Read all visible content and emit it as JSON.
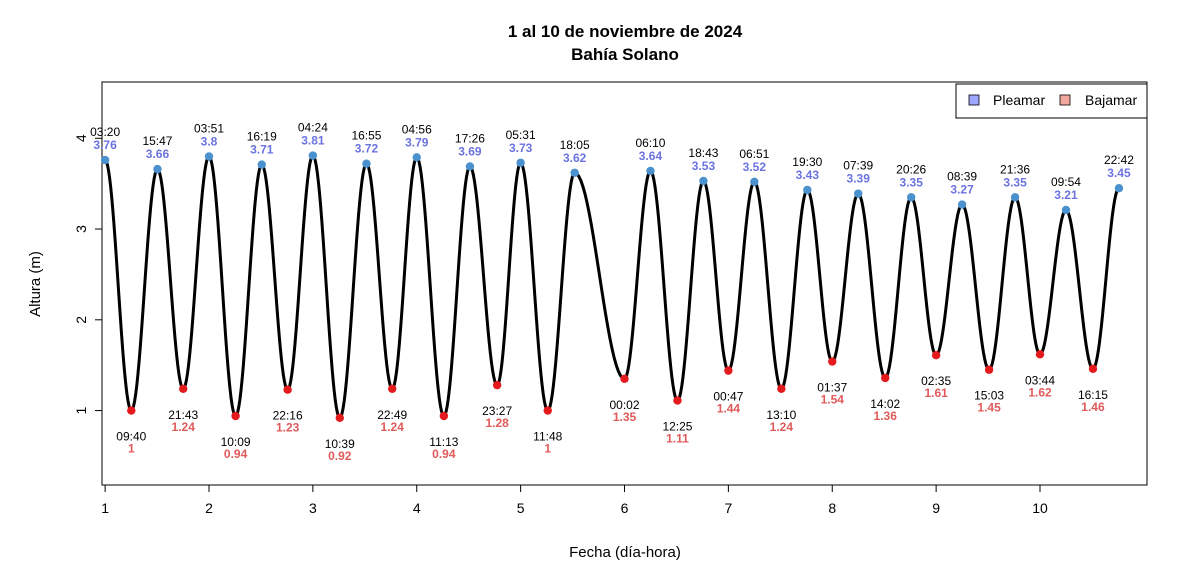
{
  "chart_data": {
    "type": "line",
    "title": "1 al 10 de noviembre de 2024",
    "subtitle": "Bahía Solano",
    "xlabel": "Fecha (día-hora)",
    "ylabel": "Altura (m)",
    "xlim": [
      0.97,
      11.03
    ],
    "ylim": [
      0.18,
      4.62
    ],
    "x_ticks": [
      1,
      2,
      3,
      4,
      5,
      6,
      7,
      8,
      9,
      10
    ],
    "y_ticks": [
      1,
      2,
      3,
      4
    ],
    "grid": false,
    "legend_position": "top-right",
    "colors": {
      "curve": "#000000",
      "high_point": "#4b91cd",
      "low_point": "#e41a1c",
      "high_label": "#6b73e0",
      "low_label": "#e05a5a",
      "legend_high_fill": "#9ea6ff",
      "legend_low_fill": "#f2a89e"
    },
    "legend": [
      {
        "label": "Pleamar",
        "swatch": "high"
      },
      {
        "label": "Bajamar",
        "swatch": "low"
      }
    ],
    "extremes": [
      {
        "type": "high",
        "day": 1,
        "time": "03:20",
        "value": "3.76",
        "x": 1.0,
        "y": 3.76
      },
      {
        "type": "low",
        "day": 1,
        "time": "09:40",
        "value": "1",
        "x": 1.252,
        "y": 1.0
      },
      {
        "type": "high",
        "day": 1,
        "time": "15:47",
        "value": "3.66",
        "x": 1.504,
        "y": 3.66
      },
      {
        "type": "low",
        "day": 1,
        "time": "21:43",
        "value": "1.24",
        "x": 1.752,
        "y": 1.24
      },
      {
        "type": "high",
        "day": 2,
        "time": "03:51",
        "value": "3.8",
        "x": 2.0,
        "y": 3.8
      },
      {
        "type": "low",
        "day": 2,
        "time": "10:09",
        "value": "0.94",
        "x": 2.256,
        "y": 0.94
      },
      {
        "type": "high",
        "day": 2,
        "time": "16:19",
        "value": "3.71",
        "x": 2.508,
        "y": 3.71
      },
      {
        "type": "low",
        "day": 2,
        "time": "22:16",
        "value": "1.23",
        "x": 2.757,
        "y": 1.23
      },
      {
        "type": "high",
        "day": 3,
        "time": "04:24",
        "value": "3.81",
        "x": 3.0,
        "y": 3.81
      },
      {
        "type": "low",
        "day": 3,
        "time": "10:39",
        "value": "0.92",
        "x": 3.259,
        "y": 0.92
      },
      {
        "type": "high",
        "day": 3,
        "time": "16:55",
        "value": "3.72",
        "x": 3.516,
        "y": 3.72
      },
      {
        "type": "low",
        "day": 3,
        "time": "22:49",
        "value": "1.24",
        "x": 3.764,
        "y": 1.24
      },
      {
        "type": "high",
        "day": 4,
        "time": "04:56",
        "value": "3.79",
        "x": 4.0,
        "y": 3.79
      },
      {
        "type": "low",
        "day": 4,
        "time": "11:13",
        "value": "0.94",
        "x": 4.261,
        "y": 0.94
      },
      {
        "type": "high",
        "day": 4,
        "time": "17:26",
        "value": "3.69",
        "x": 4.512,
        "y": 3.69
      },
      {
        "type": "low",
        "day": 4,
        "time": "23:27",
        "value": "1.28",
        "x": 4.774,
        "y": 1.28
      },
      {
        "type": "high",
        "day": 5,
        "time": "05:31",
        "value": "3.73",
        "x": 5.0,
        "y": 3.73
      },
      {
        "type": "low",
        "day": 5,
        "time": "11:48",
        "value": "1",
        "x": 5.261,
        "y": 1.0
      },
      {
        "type": "high",
        "day": 5,
        "time": "18:05",
        "value": "3.62",
        "x": 5.52,
        "y": 3.62
      },
      {
        "type": "low",
        "day": 6,
        "time": "00:02",
        "value": "1.35",
        "x": 6.0,
        "y": 1.35
      },
      {
        "type": "high",
        "day": 6,
        "time": "06:10",
        "value": "3.64",
        "x": 6.25,
        "y": 3.64
      },
      {
        "type": "low",
        "day": 6,
        "time": "12:25",
        "value": "1.11",
        "x": 6.51,
        "y": 1.11
      },
      {
        "type": "high",
        "day": 6,
        "time": "18:43",
        "value": "3.53",
        "x": 6.76,
        "y": 3.53
      },
      {
        "type": "low",
        "day": 7,
        "time": "00:47",
        "value": "1.44",
        "x": 7.0,
        "y": 1.44
      },
      {
        "type": "high",
        "day": 7,
        "time": "06:51",
        "value": "3.52",
        "x": 7.25,
        "y": 3.52
      },
      {
        "type": "low",
        "day": 7,
        "time": "13:10",
        "value": "1.24",
        "x": 7.51,
        "y": 1.24
      },
      {
        "type": "high",
        "day": 7,
        "time": "19:30",
        "value": "3.43",
        "x": 7.76,
        "y": 3.43
      },
      {
        "type": "low",
        "day": 8,
        "time": "01:37",
        "value": "1.54",
        "x": 8.0,
        "y": 1.54
      },
      {
        "type": "high",
        "day": 8,
        "time": "07:39",
        "value": "3.39",
        "x": 8.25,
        "y": 3.39
      },
      {
        "type": "low",
        "day": 8,
        "time": "14:02",
        "value": "1.36",
        "x": 8.51,
        "y": 1.36
      },
      {
        "type": "high",
        "day": 8,
        "time": "20:26",
        "value": "3.35",
        "x": 8.76,
        "y": 3.35
      },
      {
        "type": "low",
        "day": 9,
        "time": "02:35",
        "value": "1.61",
        "x": 9.0,
        "y": 1.61
      },
      {
        "type": "high",
        "day": 9,
        "time": "08:39",
        "value": "3.27",
        "x": 9.25,
        "y": 3.27
      },
      {
        "type": "low",
        "day": 9,
        "time": "15:03",
        "value": "1.45",
        "x": 9.51,
        "y": 1.45
      },
      {
        "type": "high",
        "day": 9,
        "time": "21:36",
        "value": "3.35",
        "x": 9.76,
        "y": 3.35
      },
      {
        "type": "low",
        "day": 10,
        "time": "03:44",
        "value": "1.62",
        "x": 10.0,
        "y": 1.62
      },
      {
        "type": "high",
        "day": 10,
        "time": "09:54",
        "value": "3.21",
        "x": 10.25,
        "y": 3.21
      },
      {
        "type": "low",
        "day": 10,
        "time": "16:15",
        "value": "1.46",
        "x": 10.51,
        "y": 1.46
      },
      {
        "type": "high",
        "day": 10,
        "time": "22:42",
        "value": "3.45",
        "x": 10.76,
        "y": 3.45
      }
    ]
  }
}
